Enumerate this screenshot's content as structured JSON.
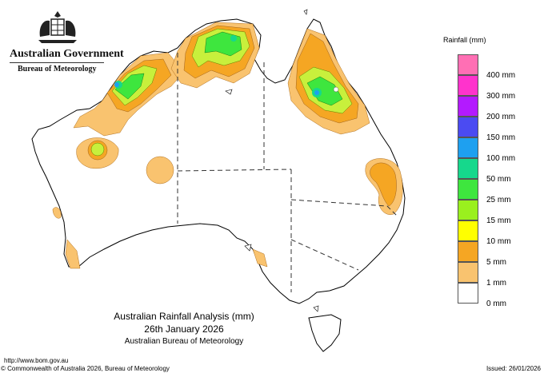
{
  "header": {
    "government": "Australian Government",
    "agency": "Bureau of Meteorology"
  },
  "legend": {
    "title": "Rainfall (mm)",
    "items": [
      {
        "label": "",
        "color": "#ff6fb4"
      },
      {
        "label": "400 mm",
        "color": "#ff33cc"
      },
      {
        "label": "300 mm",
        "color": "#b31aff"
      },
      {
        "label": "200 mm",
        "color": "#4b4bf2"
      },
      {
        "label": "150 mm",
        "color": "#1ea0f0"
      },
      {
        "label": "100 mm",
        "color": "#16d88c"
      },
      {
        "label": "50 mm",
        "color": "#3ee63e"
      },
      {
        "label": "25 mm",
        "color": "#9af01e"
      },
      {
        "label": "15 mm",
        "color": "#ffff00"
      },
      {
        "label": "10 mm",
        "color": "#f5a623"
      },
      {
        "label": "5 mm",
        "color": "#f9c36f"
      },
      {
        "label": "1 mm",
        "color": "#ffffff"
      },
      {
        "label": "0 mm",
        "color": ""
      }
    ]
  },
  "caption": {
    "title": "Australian Rainfall Analysis (mm)",
    "date": "26th January 2026",
    "source": "Australian Bureau of Meteorology"
  },
  "footer": {
    "url": "http://www.bom.gov.au",
    "copyright": "© Commonwealth of Australia 2026, Bureau of Meteorology",
    "issued": "Issued: 26/01/2026"
  }
}
